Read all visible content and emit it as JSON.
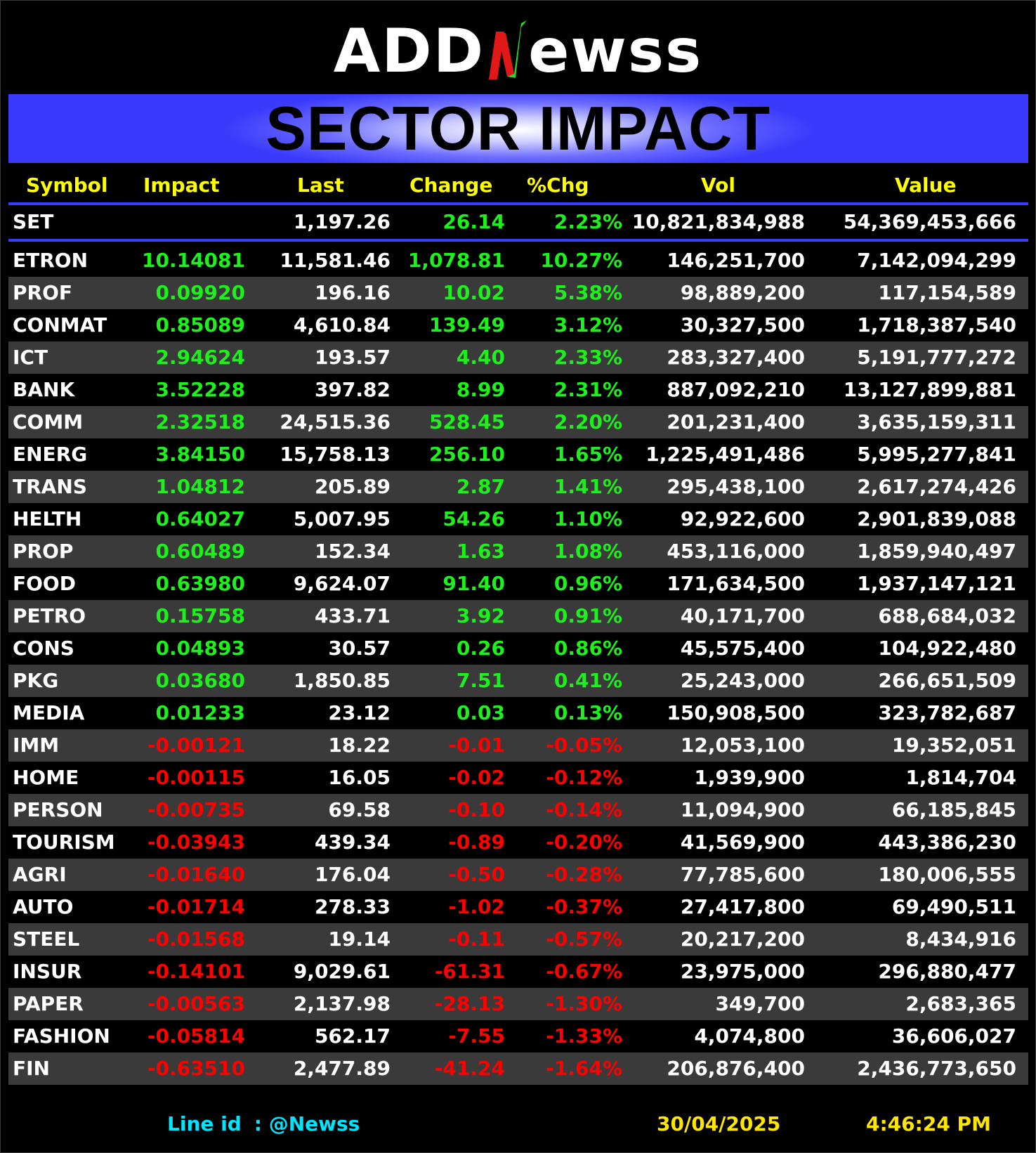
{
  "logo": {
    "prefix": "ADD",
    "suffix": "ewss",
    "accent_colors": [
      "#e01818",
      "#2bd42b"
    ]
  },
  "banner": {
    "title": "SECTOR IMPACT",
    "color": "#3a3afc"
  },
  "table": {
    "headers": {
      "symbol": "Symbol",
      "impact": "Impact",
      "last": "Last",
      "change": "Change",
      "pct": "%Chg",
      "vol": "Vol",
      "value": "Value"
    },
    "index_row": {
      "symbol": "SET",
      "impact": "",
      "last": "1,197.26",
      "change": "26.14",
      "pct": "2.23%",
      "vol": "10,821,834,988",
      "value": "54,369,453,666",
      "direction": "up"
    },
    "rows": [
      {
        "symbol": "ETRON",
        "impact": "10.14081",
        "last": "11,581.46",
        "change": "1,078.81",
        "pct": "10.27%",
        "vol": "146,251,700",
        "value": "7,142,094,299",
        "direction": "up"
      },
      {
        "symbol": "PROF",
        "impact": "0.09920",
        "last": "196.16",
        "change": "10.02",
        "pct": "5.38%",
        "vol": "98,889,200",
        "value": "117,154,589",
        "direction": "up"
      },
      {
        "symbol": "CONMAT",
        "impact": "0.85089",
        "last": "4,610.84",
        "change": "139.49",
        "pct": "3.12%",
        "vol": "30,327,500",
        "value": "1,718,387,540",
        "direction": "up"
      },
      {
        "symbol": "ICT",
        "impact": "2.94624",
        "last": "193.57",
        "change": "4.40",
        "pct": "2.33%",
        "vol": "283,327,400",
        "value": "5,191,777,272",
        "direction": "up"
      },
      {
        "symbol": "BANK",
        "impact": "3.52228",
        "last": "397.82",
        "change": "8.99",
        "pct": "2.31%",
        "vol": "887,092,210",
        "value": "13,127,899,881",
        "direction": "up"
      },
      {
        "symbol": "COMM",
        "impact": "2.32518",
        "last": "24,515.36",
        "change": "528.45",
        "pct": "2.20%",
        "vol": "201,231,400",
        "value": "3,635,159,311",
        "direction": "up"
      },
      {
        "symbol": "ENERG",
        "impact": "3.84150",
        "last": "15,758.13",
        "change": "256.10",
        "pct": "1.65%",
        "vol": "1,225,491,486",
        "value": "5,995,277,841",
        "direction": "up"
      },
      {
        "symbol": "TRANS",
        "impact": "1.04812",
        "last": "205.89",
        "change": "2.87",
        "pct": "1.41%",
        "vol": "295,438,100",
        "value": "2,617,274,426",
        "direction": "up"
      },
      {
        "symbol": "HELTH",
        "impact": "0.64027",
        "last": "5,007.95",
        "change": "54.26",
        "pct": "1.10%",
        "vol": "92,922,600",
        "value": "2,901,839,088",
        "direction": "up"
      },
      {
        "symbol": "PROP",
        "impact": "0.60489",
        "last": "152.34",
        "change": "1.63",
        "pct": "1.08%",
        "vol": "453,116,000",
        "value": "1,859,940,497",
        "direction": "up"
      },
      {
        "symbol": "FOOD",
        "impact": "0.63980",
        "last": "9,624.07",
        "change": "91.40",
        "pct": "0.96%",
        "vol": "171,634,500",
        "value": "1,937,147,121",
        "direction": "up"
      },
      {
        "symbol": "PETRO",
        "impact": "0.15758",
        "last": "433.71",
        "change": "3.92",
        "pct": "0.91%",
        "vol": "40,171,700",
        "value": "688,684,032",
        "direction": "up"
      },
      {
        "symbol": "CONS",
        "impact": "0.04893",
        "last": "30.57",
        "change": "0.26",
        "pct": "0.86%",
        "vol": "45,575,400",
        "value": "104,922,480",
        "direction": "up"
      },
      {
        "symbol": "PKG",
        "impact": "0.03680",
        "last": "1,850.85",
        "change": "7.51",
        "pct": "0.41%",
        "vol": "25,243,000",
        "value": "266,651,509",
        "direction": "up"
      },
      {
        "symbol": "MEDIA",
        "impact": "0.01233",
        "last": "23.12",
        "change": "0.03",
        "pct": "0.13%",
        "vol": "150,908,500",
        "value": "323,782,687",
        "direction": "up"
      },
      {
        "symbol": "IMM",
        "impact": "-0.00121",
        "last": "18.22",
        "change": "-0.01",
        "pct": "-0.05%",
        "vol": "12,053,100",
        "value": "19,352,051",
        "direction": "down"
      },
      {
        "symbol": "HOME",
        "impact": "-0.00115",
        "last": "16.05",
        "change": "-0.02",
        "pct": "-0.12%",
        "vol": "1,939,900",
        "value": "1,814,704",
        "direction": "down"
      },
      {
        "symbol": "PERSON",
        "impact": "-0.00735",
        "last": "69.58",
        "change": "-0.10",
        "pct": "-0.14%",
        "vol": "11,094,900",
        "value": "66,185,845",
        "direction": "down"
      },
      {
        "symbol": "TOURISM",
        "impact": "-0.03943",
        "last": "439.34",
        "change": "-0.89",
        "pct": "-0.20%",
        "vol": "41,569,900",
        "value": "443,386,230",
        "direction": "down"
      },
      {
        "symbol": "AGRI",
        "impact": "-0.01640",
        "last": "176.04",
        "change": "-0.50",
        "pct": "-0.28%",
        "vol": "77,785,600",
        "value": "180,006,555",
        "direction": "down"
      },
      {
        "symbol": "AUTO",
        "impact": "-0.01714",
        "last": "278.33",
        "change": "-1.02",
        "pct": "-0.37%",
        "vol": "27,417,800",
        "value": "69,490,511",
        "direction": "down"
      },
      {
        "symbol": "STEEL",
        "impact": "-0.01568",
        "last": "19.14",
        "change": "-0.11",
        "pct": "-0.57%",
        "vol": "20,217,200",
        "value": "8,434,916",
        "direction": "down"
      },
      {
        "symbol": "INSUR",
        "impact": "-0.14101",
        "last": "9,029.61",
        "change": "-61.31",
        "pct": "-0.67%",
        "vol": "23,975,000",
        "value": "296,880,477",
        "direction": "down"
      },
      {
        "symbol": "PAPER",
        "impact": "-0.00563",
        "last": "2,137.98",
        "change": "-28.13",
        "pct": "-1.30%",
        "vol": "349,700",
        "value": "2,683,365",
        "direction": "down"
      },
      {
        "symbol": "FASHION",
        "impact": "-0.05814",
        "last": "562.17",
        "change": "-7.55",
        "pct": "-1.33%",
        "vol": "4,074,800",
        "value": "36,606,027",
        "direction": "down"
      },
      {
        "symbol": "FIN",
        "impact": "-0.63510",
        "last": "2,477.89",
        "change": "-41.24",
        "pct": "-1.64%",
        "vol": "206,876,400",
        "value": "2,436,773,650",
        "direction": "down"
      }
    ],
    "colors": {
      "up": "#1ef01e",
      "down": "#ff0000",
      "header": "#ffff00",
      "separator": "#3b3bff",
      "alt_row": "#3a3a3a"
    }
  },
  "footer": {
    "line_label": "Line id",
    "line_value": ": @Newss",
    "date": "30/04/2025",
    "time": "4:46:24 PM"
  }
}
